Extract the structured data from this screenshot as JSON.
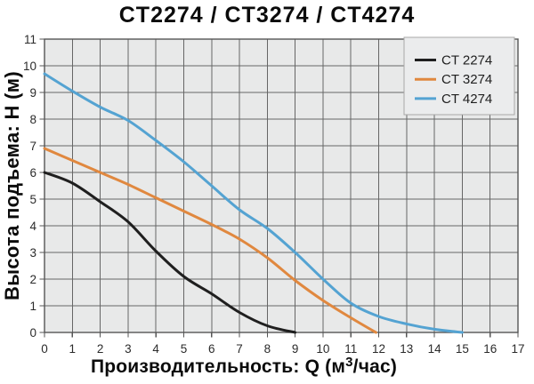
{
  "chart_data": {
    "type": "line",
    "title": "CT2274 / CT3274 / CT4274",
    "xlabel": "Производительность: Q (м3/час)",
    "xlabel_parts": {
      "pre": "Производительность: Q (м",
      "sup": "3",
      "post": "/час)"
    },
    "ylabel": "Высота подъема: H (м)",
    "xlim": [
      0,
      17
    ],
    "ylim": [
      0,
      11
    ],
    "x_ticks": [
      0,
      1,
      2,
      3,
      4,
      5,
      6,
      7,
      8,
      9,
      10,
      11,
      12,
      13,
      14,
      15,
      16,
      17
    ],
    "y_ticks": [
      0,
      1,
      2,
      3,
      4,
      5,
      6,
      7,
      8,
      9,
      10,
      11
    ],
    "grid": true,
    "legend_position": "top-right",
    "series": [
      {
        "name": "CT 2274",
        "color": "#1f1f1f",
        "points": [
          [
            0,
            6.0
          ],
          [
            1,
            5.6
          ],
          [
            2,
            4.9
          ],
          [
            3,
            4.15
          ],
          [
            4,
            3.05
          ],
          [
            5,
            2.1
          ],
          [
            6,
            1.45
          ],
          [
            7,
            0.75
          ],
          [
            8,
            0.25
          ],
          [
            9,
            0
          ]
        ]
      },
      {
        "name": "CT 3274",
        "color": "#e0883f",
        "points": [
          [
            0,
            6.9
          ],
          [
            1,
            6.45
          ],
          [
            2,
            6.0
          ],
          [
            3,
            5.55
          ],
          [
            4,
            5.05
          ],
          [
            5,
            4.55
          ],
          [
            6,
            4.05
          ],
          [
            7,
            3.5
          ],
          [
            8,
            2.8
          ],
          [
            9,
            1.95
          ],
          [
            10,
            1.2
          ],
          [
            11,
            0.55
          ],
          [
            11.9,
            0
          ]
        ]
      },
      {
        "name": "CT 4274",
        "color": "#54a3d2",
        "points": [
          [
            0,
            9.7
          ],
          [
            1,
            9.05
          ],
          [
            2,
            8.45
          ],
          [
            3,
            7.95
          ],
          [
            4,
            7.2
          ],
          [
            5,
            6.4
          ],
          [
            6,
            5.5
          ],
          [
            7,
            4.6
          ],
          [
            8,
            3.9
          ],
          [
            9,
            3.0
          ],
          [
            10,
            2.0
          ],
          [
            11,
            1.1
          ],
          [
            12,
            0.6
          ],
          [
            13,
            0.32
          ],
          [
            14,
            0.12
          ],
          [
            15,
            0
          ]
        ]
      }
    ]
  },
  "style": {
    "page_bg": "#ffffff",
    "plot_bg": "#e8e9e9",
    "grid_color": "#666666",
    "axis_color": "#555555",
    "tick_text_color": "#2b2b2b",
    "legend_bg": "#ebeced",
    "legend_border": "#a8a8a8",
    "legend_text_color": "#1e1e1e"
  }
}
